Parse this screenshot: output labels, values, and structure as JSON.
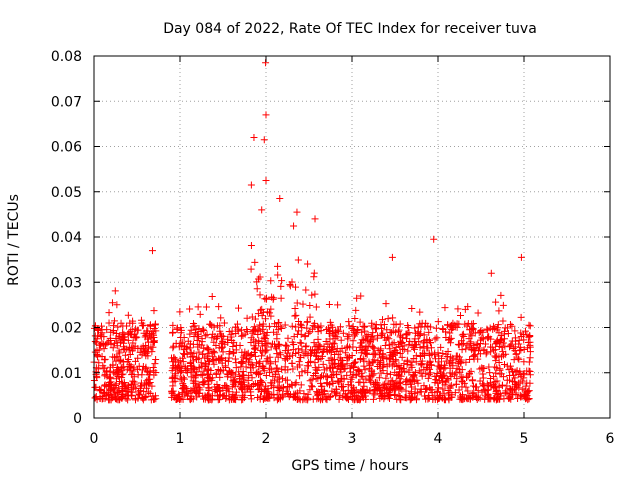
{
  "chart_data": {
    "type": "scatter",
    "title": "Day 084 of 2022, Rate Of TEC Index for receiver tuva",
    "xlabel": "GPS time / hours",
    "ylabel": "ROTI / TECUs",
    "xlim": [
      0,
      6
    ],
    "ylim": [
      0,
      0.08
    ],
    "xticks": [
      "0",
      "1",
      "2",
      "3",
      "4",
      "5",
      "6"
    ],
    "yticks": [
      "0",
      "0.01",
      "0.02",
      "0.03",
      "0.04",
      "0.05",
      "0.06",
      "0.07",
      "0.08"
    ],
    "grid": true,
    "legend": "none",
    "marker": "+",
    "color": "#ff0000",
    "gap": [
      0.72,
      0.9
    ],
    "x_end": 5.08,
    "peaks": [
      {
        "x": 0.68,
        "y": 0.037
      },
      {
        "x": 1.83,
        "y": 0.0515
      },
      {
        "x": 1.86,
        "y": 0.062
      },
      {
        "x": 1.95,
        "y": 0.046
      },
      {
        "x": 1.98,
        "y": 0.0615
      },
      {
        "x": 1.995,
        "y": 0.0785
      },
      {
        "x": 2.0,
        "y": 0.067
      },
      {
        "x": 2.0,
        "y": 0.0525
      },
      {
        "x": 2.16,
        "y": 0.0485
      },
      {
        "x": 2.36,
        "y": 0.0455
      },
      {
        "x": 2.57,
        "y": 0.044
      },
      {
        "x": 3.47,
        "y": 0.0355
      },
      {
        "x": 3.95,
        "y": 0.0395
      },
      {
        "x": 4.62,
        "y": 0.032
      },
      {
        "x": 4.97,
        "y": 0.0355
      }
    ]
  }
}
